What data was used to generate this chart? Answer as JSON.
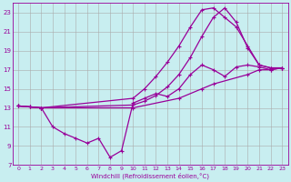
{
  "xlabel": "Windchill (Refroidissement éolien,°C)",
  "bg_color": "#c8eef0",
  "line_color": "#990099",
  "grid_color": "#aaaaaa",
  "xlim": [
    -0.5,
    23.5
  ],
  "ylim": [
    7,
    24
  ],
  "xticks": [
    0,
    1,
    2,
    3,
    4,
    5,
    6,
    7,
    8,
    9,
    10,
    11,
    12,
    13,
    14,
    15,
    16,
    17,
    18,
    19,
    20,
    21,
    22,
    23
  ],
  "yticks": [
    7,
    9,
    11,
    13,
    15,
    17,
    19,
    21,
    23
  ],
  "line1_x": [
    0,
    1,
    2,
    10,
    11,
    12,
    13,
    14,
    15,
    16,
    17,
    18,
    19,
    20,
    21,
    22,
    23
  ],
  "line1_y": [
    13.2,
    13.1,
    13.0,
    14.0,
    15.0,
    16.3,
    17.8,
    19.5,
    21.5,
    23.3,
    23.5,
    22.5,
    21.5,
    19.5,
    17.5,
    17.2,
    17.2
  ],
  "line2_x": [
    0,
    1,
    2,
    10,
    11,
    12,
    13,
    14,
    15,
    16,
    17,
    18,
    19,
    20,
    21,
    22,
    23
  ],
  "line2_y": [
    13.2,
    13.1,
    13.0,
    13.3,
    13.7,
    14.3,
    15.2,
    16.5,
    18.3,
    20.5,
    22.5,
    23.5,
    22.0,
    19.3,
    17.5,
    17.2,
    17.2
  ],
  "line3_x": [
    0,
    1,
    2,
    3,
    4,
    5,
    6,
    7,
    8,
    9,
    10,
    11,
    12,
    13,
    14,
    15,
    16,
    17,
    18,
    19,
    20,
    21,
    22,
    23
  ],
  "line3_y": [
    13.2,
    13.1,
    13.0,
    11.0,
    10.3,
    9.8,
    9.3,
    9.8,
    7.8,
    8.5,
    13.5,
    14.0,
    14.5,
    14.2,
    15.0,
    16.5,
    17.5,
    17.0,
    16.3,
    17.3,
    17.5,
    17.3,
    17.0,
    17.2
  ],
  "line4_x": [
    0,
    2,
    10,
    14,
    16,
    17,
    20,
    21,
    22,
    23
  ],
  "line4_y": [
    13.2,
    13.0,
    13.0,
    14.0,
    15.0,
    15.5,
    16.5,
    17.0,
    17.0,
    17.2
  ]
}
